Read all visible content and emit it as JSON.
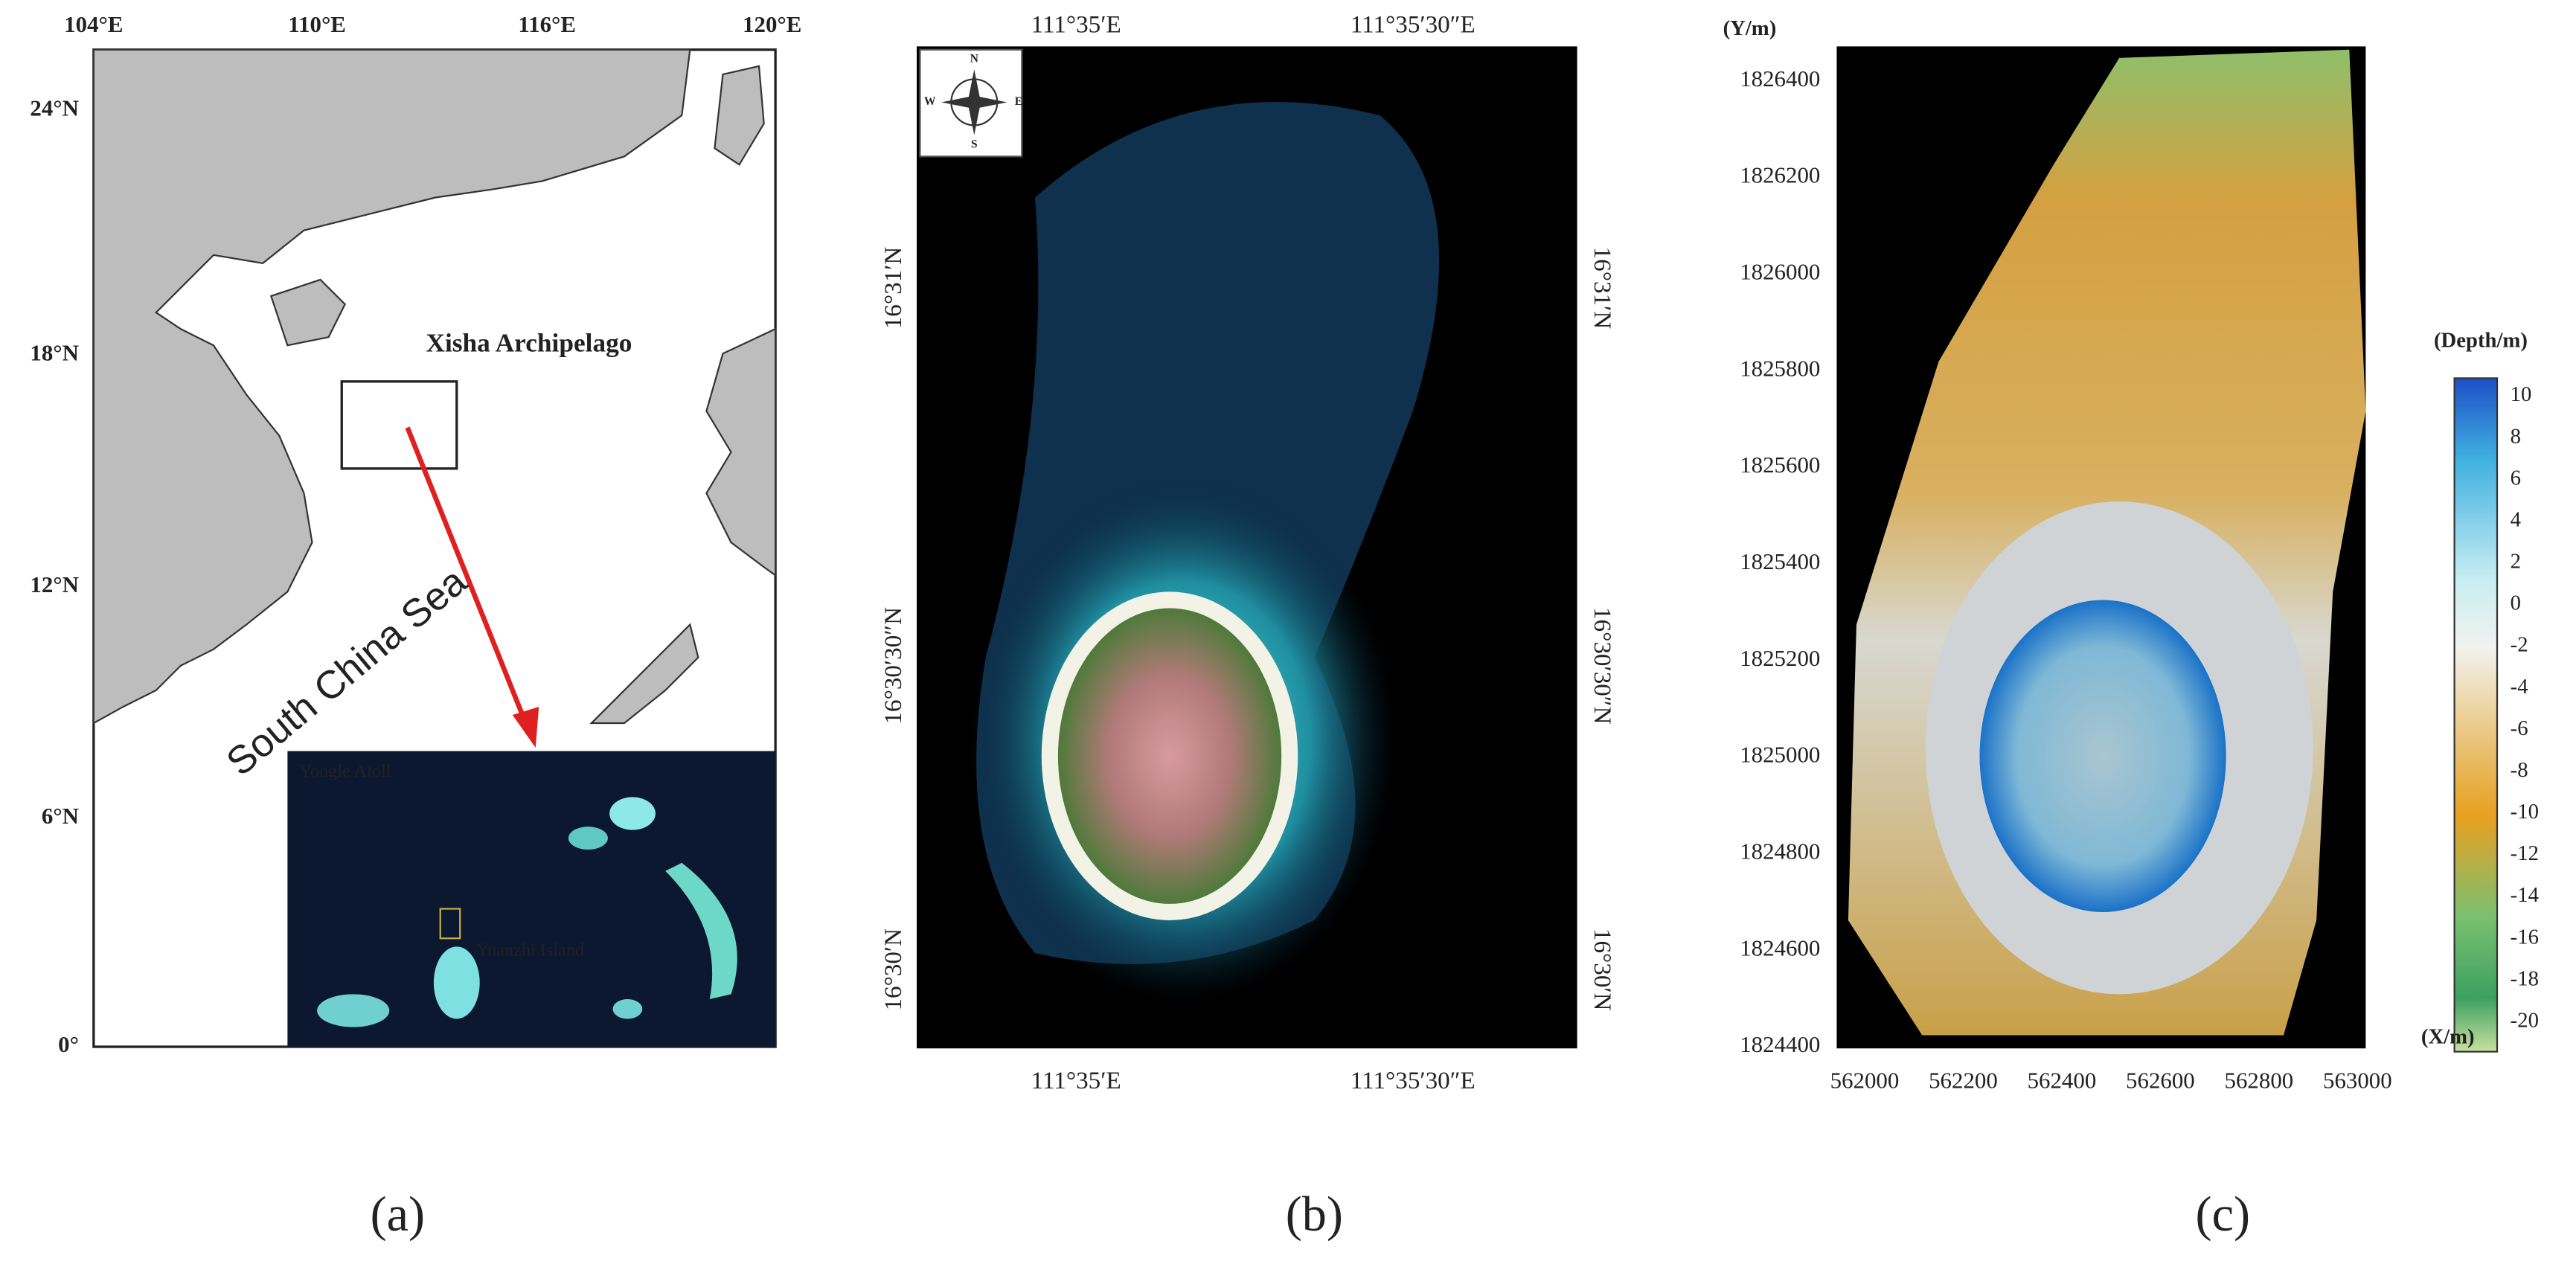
{
  "panels": [
    {
      "label": "(a)",
      "top_ticks": [
        "104°E",
        "110°E",
        "116°E",
        "120°E"
      ],
      "left_ticks": [
        "24°N",
        "18°N",
        "12°N",
        "6°N",
        "0°"
      ],
      "annotations": [
        "Xisha  Archipelago",
        "South China Sea"
      ],
      "inset_labels": [
        "Yongle Atoll",
        "Yuanzhi Island"
      ]
    },
    {
      "label": "(b)",
      "top_ticks": [
        "111°35′E",
        "111°35′30″E"
      ],
      "bottom_ticks": [
        "111°35′E",
        "111°35′30″E"
      ],
      "left_ticks": [
        "16°31′N",
        "16°30′30″N",
        "16°30′N"
      ],
      "right_ticks": [
        "16°31′N",
        "16°30′30″N",
        "16°30′N"
      ],
      "compass": [
        "N",
        "S",
        "W",
        "E"
      ]
    },
    {
      "label": "(c)",
      "y_axis_label": "(Y/m)",
      "x_axis_label": "(X/m)",
      "yticks": [
        "1826400",
        "1826200",
        "1826000",
        "1825800",
        "1825600",
        "1825400",
        "1825200",
        "1825000",
        "1824800",
        "1824600",
        "1824400"
      ],
      "xticks": [
        "562000",
        "562200",
        "562400",
        "562600",
        "562800",
        "563000"
      ],
      "colorbar_title": "(Depth/m)",
      "colorbar_ticks": [
        "10",
        "8",
        "6",
        "4",
        "2",
        "0",
        "-2",
        "-4",
        "-6",
        "-8",
        "-10",
        "-12",
        "-14",
        "-16",
        "-18",
        "-20"
      ]
    }
  ]
}
